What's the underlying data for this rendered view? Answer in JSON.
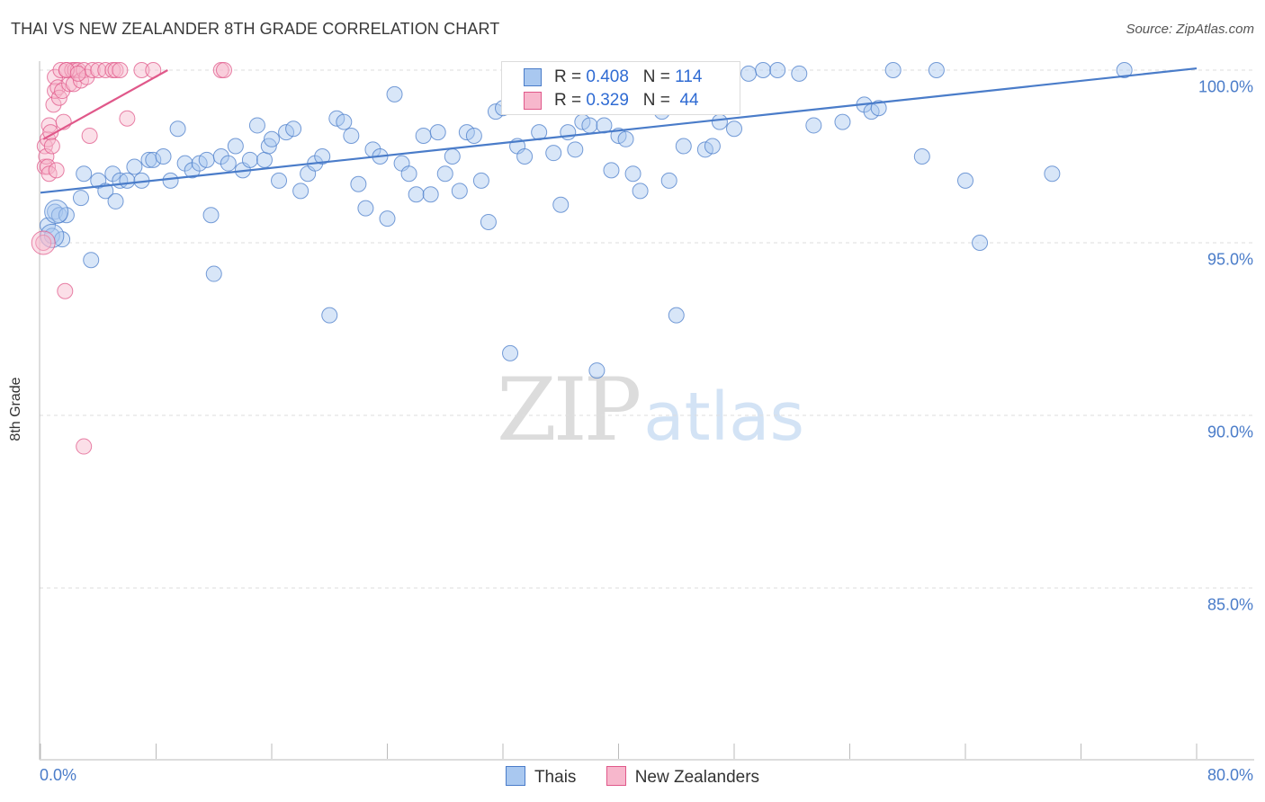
{
  "chart_data": {
    "type": "scatter",
    "title": "THAI VS NEW ZEALANDER 8TH GRADE CORRELATION CHART",
    "source": "Source: ZipAtlas.com",
    "ylabel": "8th Grade",
    "xlim": [
      0,
      80
    ],
    "ylim": [
      80.5,
      100.8
    ],
    "y_ticks": [
      100,
      95,
      90,
      85
    ],
    "y_tick_labels": [
      "100.0%",
      "95.0%",
      "90.0%",
      "85.0%"
    ],
    "x_tick_labels": [
      "0.0%",
      "80.0%"
    ],
    "colors": {
      "thais": "#4a7cc9",
      "thais_fill": "#a9c8f0",
      "nz": "#e0588a",
      "nz_fill": "#f7b7cc"
    },
    "legend": {
      "rows": [
        {
          "r_label": "R =",
          "r": "0.408",
          "n_label": "N =",
          "n": "114"
        },
        {
          "r_label": "R =",
          "r": "0.329",
          "n_label": "N =",
          "n": "44"
        }
      ]
    },
    "series": [
      {
        "name": "Thais",
        "trend": {
          "x": [
            0,
            80
          ],
          "y": [
            96.45,
            100.05
          ]
        },
        "points": [
          [
            0.5,
            95.5
          ],
          [
            0.8,
            95.2
          ],
          [
            1.0,
            95.9
          ],
          [
            1.3,
            95.8
          ],
          [
            1.8,
            95.8
          ],
          [
            1.5,
            95.1
          ],
          [
            3.0,
            97.0
          ],
          [
            2.8,
            96.3
          ],
          [
            3.5,
            94.5
          ],
          [
            4.0,
            96.8
          ],
          [
            4.5,
            96.5
          ],
          [
            5.0,
            97.0
          ],
          [
            5.5,
            96.8
          ],
          [
            5.2,
            96.2
          ],
          [
            6.0,
            96.8
          ],
          [
            6.5,
            97.2
          ],
          [
            7.0,
            96.8
          ],
          [
            7.5,
            97.4
          ],
          [
            7.8,
            97.4
          ],
          [
            8.5,
            97.5
          ],
          [
            9.0,
            96.8
          ],
          [
            9.5,
            98.3
          ],
          [
            10.0,
            97.3
          ],
          [
            10.5,
            97.1
          ],
          [
            11.0,
            97.3
          ],
          [
            11.5,
            97.4
          ],
          [
            11.8,
            95.8
          ],
          [
            12.0,
            94.1
          ],
          [
            12.5,
            97.5
          ],
          [
            13.0,
            97.3
          ],
          [
            13.5,
            97.8
          ],
          [
            14.0,
            97.1
          ],
          [
            14.5,
            97.4
          ],
          [
            15.0,
            98.4
          ],
          [
            15.5,
            97.4
          ],
          [
            15.8,
            97.8
          ],
          [
            16.0,
            98.0
          ],
          [
            16.5,
            96.8
          ],
          [
            17.0,
            98.2
          ],
          [
            17.5,
            98.3
          ],
          [
            18.0,
            96.5
          ],
          [
            18.5,
            97.0
          ],
          [
            19.0,
            97.3
          ],
          [
            19.5,
            97.5
          ],
          [
            20.0,
            92.9
          ],
          [
            20.5,
            98.6
          ],
          [
            21.0,
            98.5
          ],
          [
            21.5,
            98.1
          ],
          [
            22.0,
            96.7
          ],
          [
            22.5,
            96.0
          ],
          [
            23.0,
            97.7
          ],
          [
            23.5,
            97.5
          ],
          [
            24.0,
            95.7
          ],
          [
            24.5,
            99.3
          ],
          [
            25.0,
            97.3
          ],
          [
            25.5,
            97.0
          ],
          [
            26.0,
            96.4
          ],
          [
            26.5,
            98.1
          ],
          [
            27.0,
            96.4
          ],
          [
            27.5,
            98.2
          ],
          [
            28.0,
            97.0
          ],
          [
            28.5,
            97.5
          ],
          [
            29.0,
            96.5
          ],
          [
            29.5,
            98.2
          ],
          [
            30.0,
            98.1
          ],
          [
            30.5,
            96.8
          ],
          [
            31.0,
            95.6
          ],
          [
            31.5,
            98.8
          ],
          [
            32.0,
            98.9
          ],
          [
            32.5,
            91.8
          ],
          [
            33.0,
            97.8
          ],
          [
            33.5,
            97.5
          ],
          [
            34.0,
            99.2
          ],
          [
            34.5,
            98.2
          ],
          [
            35.0,
            99.1
          ],
          [
            35.5,
            97.6
          ],
          [
            36.0,
            96.1
          ],
          [
            36.5,
            98.2
          ],
          [
            37.0,
            97.7
          ],
          [
            37.5,
            98.5
          ],
          [
            38.0,
            98.4
          ],
          [
            38.5,
            91.3
          ],
          [
            39.0,
            98.4
          ],
          [
            39.5,
            97.1
          ],
          [
            40.0,
            98.1
          ],
          [
            40.5,
            98.0
          ],
          [
            41.0,
            97.0
          ],
          [
            41.5,
            96.5
          ],
          [
            42.0,
            100.0
          ],
          [
            42.5,
            99.1
          ],
          [
            43.0,
            98.8
          ],
          [
            43.5,
            96.8
          ],
          [
            44.0,
            92.9
          ],
          [
            44.5,
            97.8
          ],
          [
            45.0,
            99.6
          ],
          [
            45.5,
            99.4
          ],
          [
            46.0,
            97.7
          ],
          [
            46.5,
            97.8
          ],
          [
            47.0,
            98.5
          ],
          [
            48.0,
            98.3
          ],
          [
            49.0,
            99.9
          ],
          [
            50.0,
            100.0
          ],
          [
            51.0,
            100.0
          ],
          [
            52.5,
            99.9
          ],
          [
            53.5,
            98.4
          ],
          [
            55.5,
            98.5
          ],
          [
            57.0,
            99.0
          ],
          [
            57.5,
            98.8
          ],
          [
            58.0,
            98.9
          ],
          [
            59.0,
            100.0
          ],
          [
            61.0,
            97.5
          ],
          [
            62.0,
            100.0
          ],
          [
            64.0,
            96.8
          ],
          [
            65.0,
            95.0
          ],
          [
            70.0,
            97.0
          ],
          [
            75.0,
            100.0
          ]
        ],
        "big_points": [
          [
            0.8,
            95.2
          ],
          [
            1.1,
            95.9
          ]
        ]
      },
      {
        "name": "New Zealanders",
        "trend": {
          "x": [
            0.2,
            8.8
          ],
          "y": [
            98.0,
            100.0
          ]
        },
        "points": [
          [
            0.2,
            95.0
          ],
          [
            0.3,
            97.2
          ],
          [
            0.3,
            97.8
          ],
          [
            0.4,
            97.5
          ],
          [
            0.5,
            97.2
          ],
          [
            0.5,
            98.0
          ],
          [
            0.6,
            98.4
          ],
          [
            0.6,
            97.0
          ],
          [
            0.7,
            98.2
          ],
          [
            0.8,
            97.8
          ],
          [
            0.9,
            99.0
          ],
          [
            1.0,
            99.4
          ],
          [
            1.0,
            99.8
          ],
          [
            1.1,
            97.1
          ],
          [
            1.2,
            99.5
          ],
          [
            1.3,
            99.2
          ],
          [
            1.4,
            100.0
          ],
          [
            1.5,
            99.4
          ],
          [
            1.6,
            98.5
          ],
          [
            1.7,
            93.6
          ],
          [
            1.8,
            100.0
          ],
          [
            2.0,
            99.6
          ],
          [
            2.2,
            100.0
          ],
          [
            2.3,
            99.6
          ],
          [
            2.4,
            100.0
          ],
          [
            2.6,
            100.0
          ],
          [
            2.8,
            99.7
          ],
          [
            3.0,
            100.0
          ],
          [
            3.0,
            89.1
          ],
          [
            3.2,
            99.8
          ],
          [
            3.4,
            98.1
          ],
          [
            3.6,
            100.0
          ],
          [
            4.0,
            100.0
          ],
          [
            4.5,
            100.0
          ],
          [
            5.0,
            100.0
          ],
          [
            5.2,
            100.0
          ],
          [
            5.5,
            100.0
          ],
          [
            6.0,
            98.6
          ],
          [
            7.0,
            100.0
          ],
          [
            7.8,
            100.0
          ],
          [
            12.5,
            100.0
          ],
          [
            12.7,
            100.0
          ],
          [
            1.8,
            100.0
          ],
          [
            2.6,
            99.9
          ]
        ],
        "big_points": [
          [
            0.2,
            95.0
          ]
        ]
      }
    ]
  },
  "bottom_legend": {
    "thais": "Thais",
    "nz": "New Zealanders"
  },
  "watermark": {
    "zip": "ZIP",
    "atlas": "atlas"
  }
}
